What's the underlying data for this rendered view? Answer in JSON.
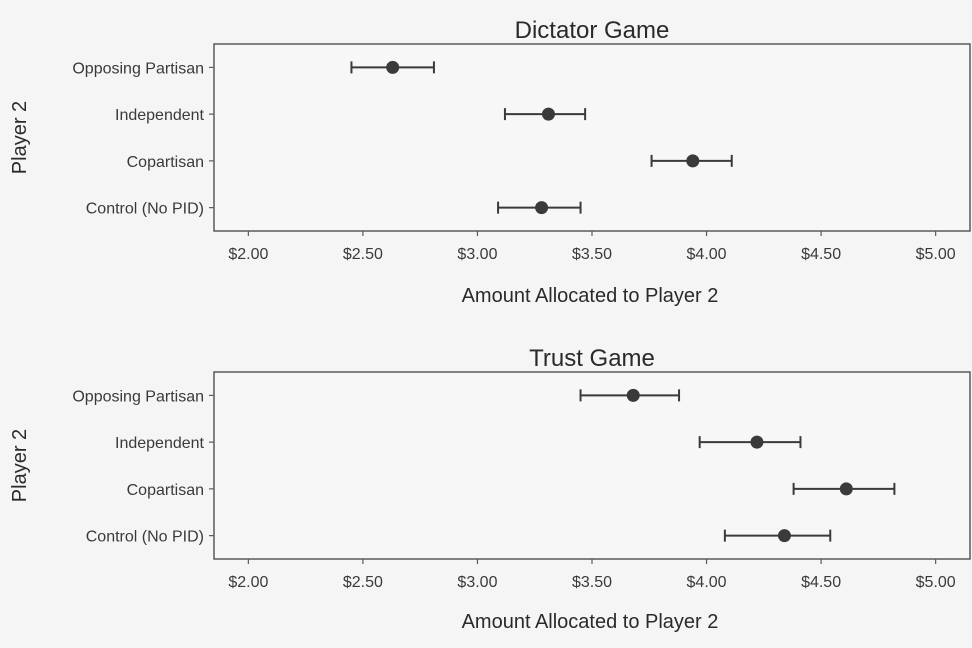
{
  "chart_data": [
    {
      "type": "scatter",
      "title": "Dictator Game",
      "xlabel": "Amount Allocated to Player 2",
      "ylabel": "Player 2",
      "categories": [
        "Opposing Partisan",
        "Independent",
        "Copartisan",
        "Control (No PID)"
      ],
      "estimates": [
        2.63,
        3.31,
        3.94,
        3.28
      ],
      "ci_low": [
        2.45,
        3.12,
        3.76,
        3.09
      ],
      "ci_high": [
        2.81,
        3.47,
        4.11,
        3.45
      ],
      "x_ticks": [
        "$2.00",
        "$2.50",
        "$3.00",
        "$3.50",
        "$4.00",
        "$4.50",
        "$5.00"
      ],
      "x_tick_values": [
        2.0,
        2.5,
        3.0,
        3.5,
        4.0,
        4.5,
        5.0
      ],
      "xlim": [
        1.85,
        5.15
      ],
      "grid": false
    },
    {
      "type": "scatter",
      "title": "Trust Game",
      "xlabel": "Amount Allocated to Player 2",
      "ylabel": "Player 2",
      "categories": [
        "Opposing Partisan",
        "Independent",
        "Copartisan",
        "Control (No PID)"
      ],
      "estimates": [
        3.68,
        4.22,
        4.61,
        4.34
      ],
      "ci_low": [
        3.45,
        3.97,
        4.38,
        4.08
      ],
      "ci_high": [
        3.88,
        4.41,
        4.82,
        4.54
      ],
      "x_ticks": [
        "$2.00",
        "$2.50",
        "$3.00",
        "$3.50",
        "$4.00",
        "$4.50",
        "$5.00"
      ],
      "x_tick_values": [
        2.0,
        2.5,
        3.0,
        3.5,
        4.0,
        4.5,
        5.0
      ],
      "xlim": [
        1.85,
        5.15
      ],
      "grid": false
    }
  ],
  "colors": {
    "panel_bg": "#f7f7f7",
    "panel_border": "#5a5a5a",
    "point": "#3a3a3a",
    "text": "#2a2a2a"
  }
}
